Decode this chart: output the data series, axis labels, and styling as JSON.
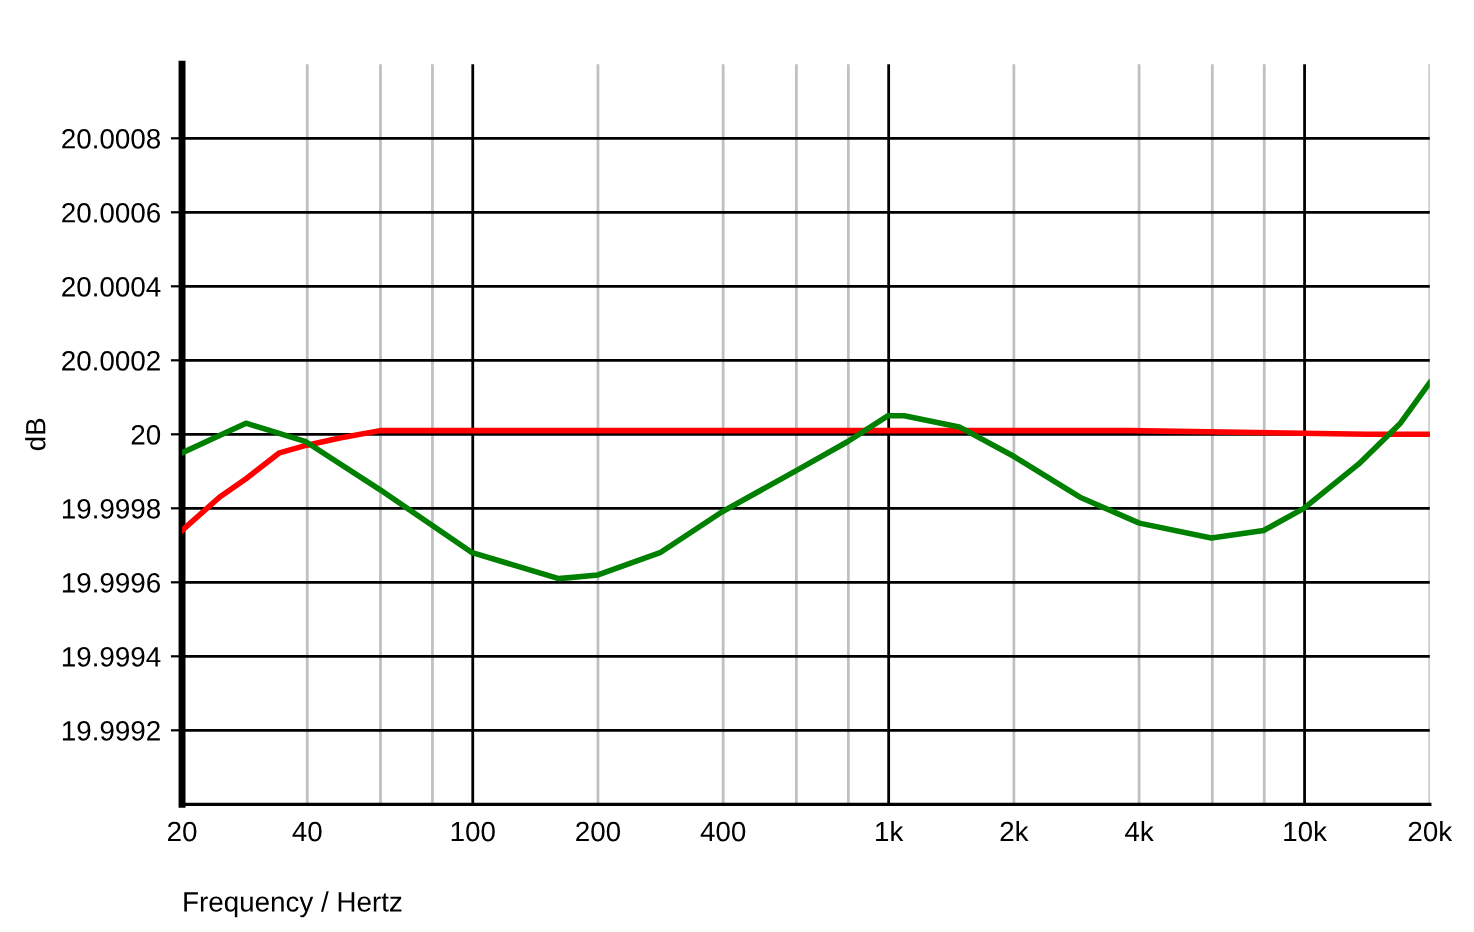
{
  "chart_data": {
    "type": "line",
    "xlabel": "Frequency / Hertz",
    "ylabel": "dB",
    "log": "x",
    "xlim": [
      20,
      20000
    ],
    "xticks": [
      20,
      40,
      {
        "value": 60,
        "label": null
      },
      {
        "value": 80,
        "label": null
      },
      100,
      200,
      400,
      {
        "value": 600,
        "label": null
      },
      {
        "value": 800,
        "label": null
      },
      {
        "value": 1000,
        "label": "1k"
      },
      {
        "value": 2000,
        "label": "2k"
      },
      {
        "value": 4000,
        "label": "4k"
      },
      {
        "value": 6000,
        "label": null
      },
      {
        "value": 8000,
        "label": null
      },
      {
        "value": 10000,
        "label": "10k"
      },
      {
        "value": 20000,
        "label": "20k"
      }
    ],
    "ylim": [
      19.999,
      20.001
    ],
    "yticks": [
      19.9992,
      19.9994,
      19.9996,
      19.9998,
      20,
      20.0002,
      20.0004,
      20.0006,
      20.0008
    ],
    "grid": true,
    "marker": "none",
    "line_style": "solid",
    "series": [
      {
        "color": "#ff0000",
        "x": [
          20,
          24.6,
          28.5,
          34.3,
          39.7,
          47.9,
          59.9,
          99.7,
          241,
          493,
          3800,
          14100,
          20000
        ],
        "values": [
          19.99974,
          19.99983,
          19.99988,
          19.99995,
          19.99997,
          19.99999,
          20.00001,
          20.00001,
          20.00001,
          20.00001,
          20.00001,
          20.0,
          20.0
        ]
      },
      {
        "color": "#008000",
        "x": [
          20,
          28.5,
          39.7,
          59.9,
          99.7,
          161,
          200,
          282,
          397,
          595,
          796,
          995,
          1090,
          1478,
          2003,
          2884,
          4006,
          5968,
          7970,
          9960,
          13500,
          17000,
          20000
        ],
        "values": [
          19.99995,
          20.00003,
          19.99998,
          19.99985,
          19.99968,
          19.99961,
          19.99962,
          19.99968,
          19.99979,
          19.9999,
          19.99998,
          20.00005,
          20.00005,
          20.00002,
          19.99994,
          19.99983,
          19.99976,
          19.99972,
          19.99974,
          19.9998,
          19.99992,
          20.00003,
          20.00014
        ]
      }
    ]
  }
}
